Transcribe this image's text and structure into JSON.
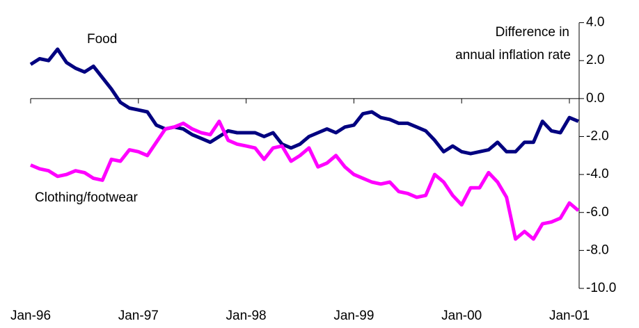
{
  "chart_data": {
    "type": "line",
    "ylabel": [
      "Difference in",
      "annual inflation rate"
    ],
    "categories": [
      "Jan-96",
      null,
      null,
      null,
      null,
      null,
      null,
      null,
      null,
      null,
      null,
      null,
      "Jan-97",
      null,
      null,
      null,
      null,
      null,
      null,
      null,
      null,
      null,
      null,
      null,
      "Jan-98",
      null,
      null,
      null,
      null,
      null,
      null,
      null,
      null,
      null,
      null,
      null,
      "Jan-99",
      null,
      null,
      null,
      null,
      null,
      null,
      null,
      null,
      null,
      null,
      null,
      "Jan-00",
      null,
      null,
      null,
      null,
      null,
      null,
      null,
      null,
      null,
      null,
      null,
      "Jan-01",
      null
    ],
    "series": [
      {
        "name": "Food",
        "color": "#000080",
        "values": [
          1.8,
          2.1,
          2.0,
          2.6,
          1.9,
          1.6,
          1.4,
          1.7,
          1.1,
          0.5,
          -0.2,
          -0.5,
          -0.6,
          -0.7,
          -1.4,
          -1.6,
          -1.5,
          -1.6,
          -1.9,
          -2.1,
          -2.3,
          -2.0,
          -1.7,
          -1.8,
          -1.8,
          -1.8,
          -2.0,
          -1.8,
          -2.4,
          -2.6,
          -2.4,
          -2.0,
          -1.8,
          -1.6,
          -1.8,
          -1.5,
          -1.4,
          -0.8,
          -0.7,
          -1.0,
          -1.1,
          -1.3,
          -1.3,
          -1.5,
          -1.7,
          -2.2,
          -2.8,
          -2.5,
          -2.8,
          -2.9,
          -2.8,
          -2.7,
          -2.3,
          -2.8,
          -2.8,
          -2.3,
          -2.3,
          -1.2,
          -1.7,
          -1.8,
          -1.0,
          -1.2
        ]
      },
      {
        "name": "Clothing/footwear",
        "color": "#ff00ff",
        "values": [
          -3.5,
          -3.7,
          -3.8,
          -4.1,
          -4.0,
          -3.8,
          -3.9,
          -4.2,
          -4.3,
          -3.2,
          -3.3,
          -2.7,
          -2.8,
          -3.0,
          -2.3,
          -1.6,
          -1.5,
          -1.3,
          -1.6,
          -1.8,
          -1.9,
          -1.2,
          -2.2,
          -2.4,
          -2.5,
          -2.6,
          -3.2,
          -2.6,
          -2.5,
          -3.3,
          -3.0,
          -2.6,
          -3.6,
          -3.4,
          -3.0,
          -3.6,
          -4.0,
          -4.2,
          -4.4,
          -4.5,
          -4.4,
          -4.9,
          -5.0,
          -5.2,
          -5.1,
          -4.0,
          -4.4,
          -5.1,
          -5.6,
          -4.7,
          -4.7,
          -3.9,
          -4.4,
          -5.2,
          -7.4,
          -7.0,
          -7.4,
          -6.6,
          -6.5,
          -6.3,
          -5.5,
          -5.9
        ]
      }
    ],
    "ylim": [
      -10,
      4
    ],
    "yticks": [
      {
        "value": 4,
        "label": "4.0"
      },
      {
        "value": 2,
        "label": "2.0"
      },
      {
        "value": 0,
        "label": "0.0"
      },
      {
        "value": -2,
        "label": "-2.0"
      },
      {
        "value": -4,
        "label": "-4.0"
      },
      {
        "value": -6,
        "label": "-6.0"
      },
      {
        "value": -8,
        "label": "-8.0"
      },
      {
        "value": -10,
        "label": "-10.0"
      }
    ],
    "grid": false
  }
}
